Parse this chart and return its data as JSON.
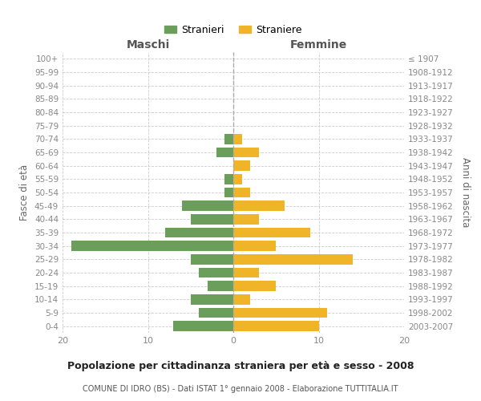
{
  "age_groups": [
    "0-4",
    "5-9",
    "10-14",
    "15-19",
    "20-24",
    "25-29",
    "30-34",
    "35-39",
    "40-44",
    "45-49",
    "50-54",
    "55-59",
    "60-64",
    "65-69",
    "70-74",
    "75-79",
    "80-84",
    "85-89",
    "90-94",
    "95-99",
    "100+"
  ],
  "birth_years": [
    "2003-2007",
    "1998-2002",
    "1993-1997",
    "1988-1992",
    "1983-1987",
    "1978-1982",
    "1973-1977",
    "1968-1972",
    "1963-1967",
    "1958-1962",
    "1953-1957",
    "1948-1952",
    "1943-1947",
    "1938-1942",
    "1933-1937",
    "1928-1932",
    "1923-1927",
    "1918-1922",
    "1913-1917",
    "1908-1912",
    "≤ 1907"
  ],
  "stranieri": [
    7,
    4,
    5,
    3,
    4,
    5,
    19,
    8,
    5,
    6,
    1,
    1,
    0,
    2,
    1,
    0,
    0,
    0,
    0,
    0,
    0
  ],
  "straniere": [
    10,
    11,
    2,
    5,
    3,
    14,
    5,
    9,
    3,
    6,
    2,
    1,
    2,
    3,
    1,
    0,
    0,
    0,
    0,
    0,
    0
  ],
  "color_stranieri": "#6a9e5a",
  "color_straniere": "#f0b429",
  "title": "Popolazione per cittadinanza straniera per età e sesso - 2008",
  "subtitle": "COMUNE DI IDRO (BS) - Dati ISTAT 1° gennaio 2008 - Elaborazione TUTTITALIA.IT",
  "label_left": "Maschi",
  "label_right": "Femmine",
  "ylabel_left": "Fasce di età",
  "ylabel_right": "Anni di nascita",
  "xlim": 20,
  "legend_stranieri": "Stranieri",
  "legend_straniere": "Straniere",
  "background_color": "#ffffff",
  "grid_color": "#cccccc",
  "xticks": [
    20,
    10,
    0,
    10,
    20
  ],
  "xtick_labels": [
    "20",
    "10",
    "0",
    "10",
    "20"
  ]
}
